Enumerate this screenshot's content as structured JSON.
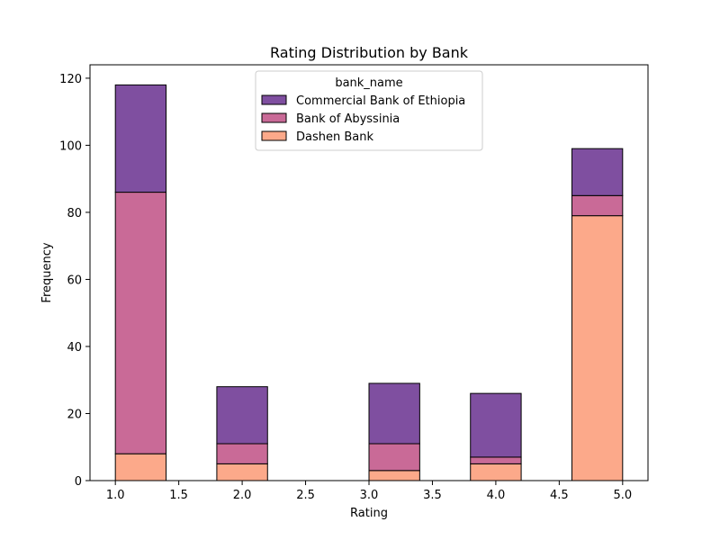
{
  "chart_data": {
    "type": "bar",
    "stacked": true,
    "title": "Rating Distribution by Bank",
    "xlabel": "Rating",
    "ylabel": "Frequency",
    "xlim": [
      0.8,
      5.2
    ],
    "ylim": [
      0,
      124
    ],
    "x_ticks": [
      "1.0",
      "1.5",
      "2.0",
      "2.5",
      "3.0",
      "3.5",
      "4.0",
      "4.5",
      "5.0"
    ],
    "y_ticks": [
      "0",
      "20",
      "40",
      "60",
      "80",
      "100",
      "120"
    ],
    "bins": [
      {
        "start": 1.0,
        "end": 1.4
      },
      {
        "start": 1.8,
        "end": 2.2
      },
      {
        "start": 3.0,
        "end": 3.4
      },
      {
        "start": 3.8,
        "end": 4.2
      },
      {
        "start": 4.6,
        "end": 5.0
      }
    ],
    "series": [
      {
        "name": "Dashen Bank",
        "color": "#fca98a",
        "values": [
          8,
          5,
          3,
          5,
          79
        ]
      },
      {
        "name": "Bank of Abyssinia",
        "color": "#c96a97",
        "values": [
          78,
          6,
          8,
          2,
          6
        ]
      },
      {
        "name": "Commercial Bank of Ethiopia",
        "color": "#7f4fa0",
        "values": [
          32,
          17,
          18,
          19,
          14
        ]
      }
    ],
    "legend": {
      "title": "bank_name",
      "placement": "upper-center",
      "entries": [
        "Commercial Bank of Ethiopia",
        "Bank of Abyssinia",
        "Dashen Bank"
      ]
    },
    "grid": false
  }
}
